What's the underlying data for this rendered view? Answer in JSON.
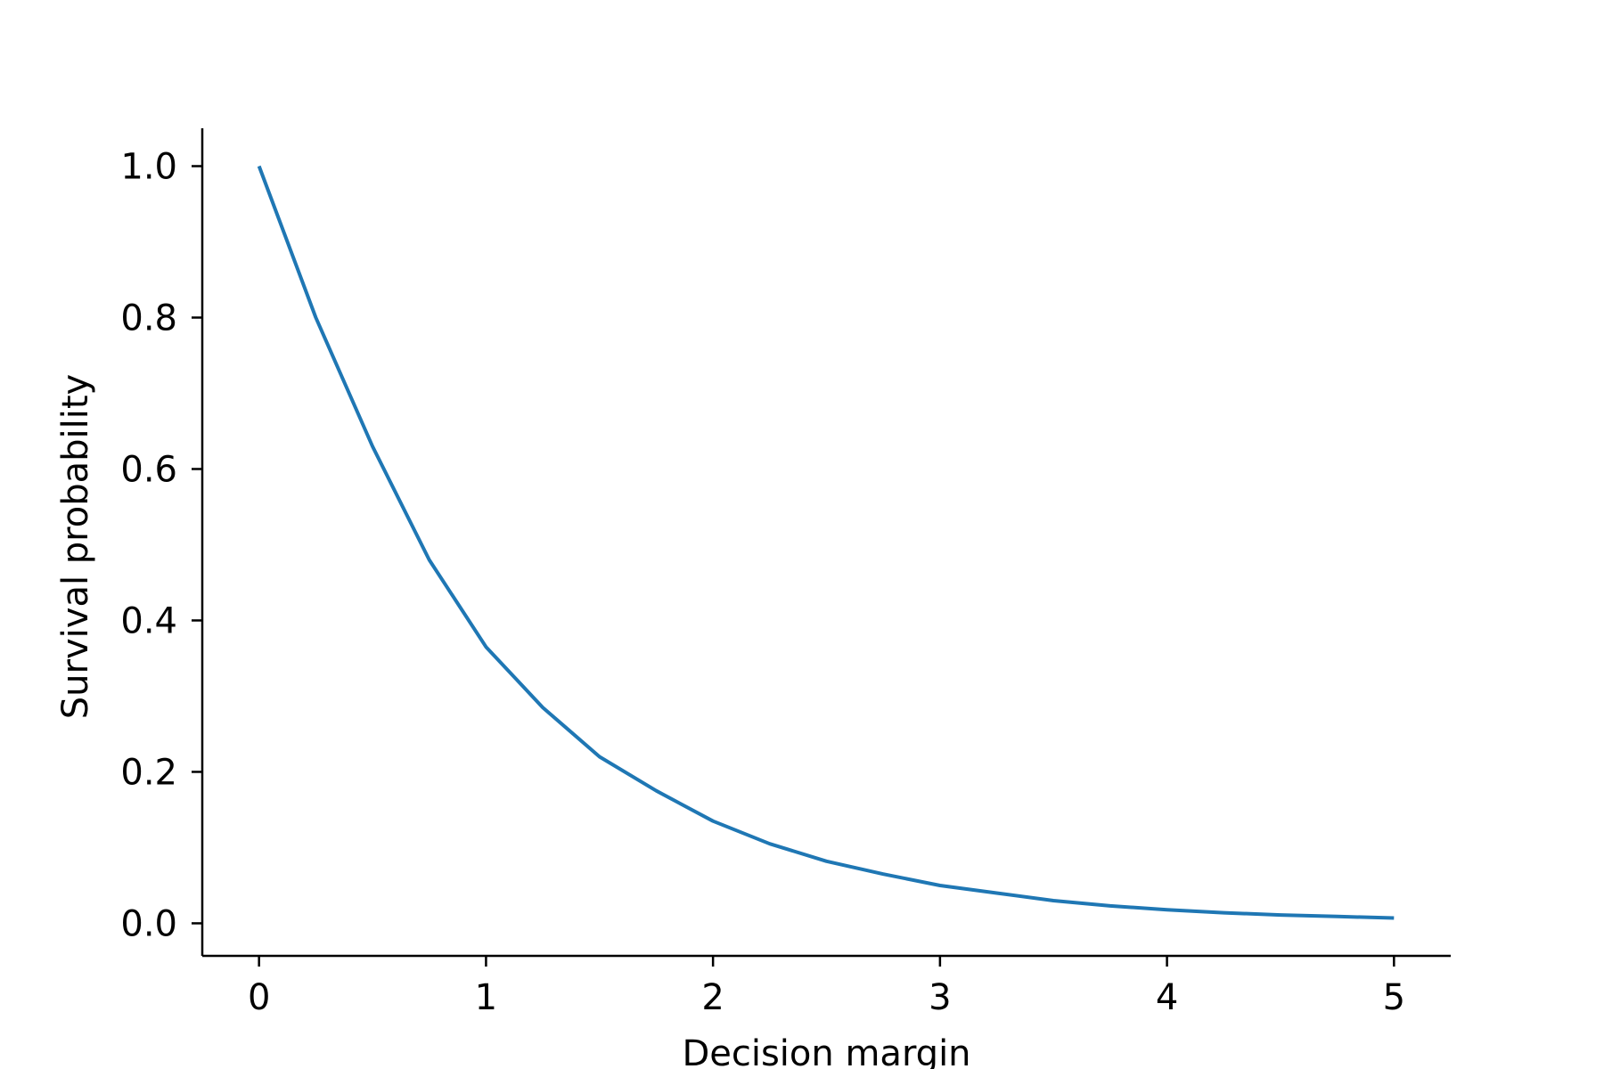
{
  "chart_data": {
    "type": "line",
    "title": "",
    "xlabel": "Decision margin",
    "ylabel": "Survival probability",
    "xlim": [
      -0.25,
      5.25
    ],
    "ylim": [
      -0.043,
      1.05
    ],
    "x_ticks": [
      0,
      1,
      2,
      3,
      4,
      5
    ],
    "x_tick_labels": [
      "0",
      "1",
      "2",
      "3",
      "4",
      "5"
    ],
    "y_ticks": [
      0.0,
      0.2,
      0.4,
      0.6,
      0.8,
      1.0
    ],
    "y_tick_labels": [
      "0.0",
      "0.2",
      "0.4",
      "0.6",
      "0.8",
      "1.0"
    ],
    "grid": false,
    "spines": [
      "left",
      "bottom"
    ],
    "series": [
      {
        "color": "#1f77b4",
        "x": [
          0,
          0.25,
          0.5,
          0.75,
          1.0,
          1.25,
          1.5,
          1.75,
          2.0,
          2.25,
          2.5,
          2.75,
          3.0,
          3.25,
          3.5,
          3.75,
          4.0,
          4.25,
          4.5,
          4.75,
          5.0
        ],
        "y": [
          1.0,
          0.8,
          0.63,
          0.48,
          0.365,
          0.285,
          0.22,
          0.175,
          0.135,
          0.105,
          0.082,
          0.065,
          0.05,
          0.04,
          0.03,
          0.023,
          0.018,
          0.014,
          0.011,
          0.009,
          0.007
        ]
      }
    ]
  }
}
